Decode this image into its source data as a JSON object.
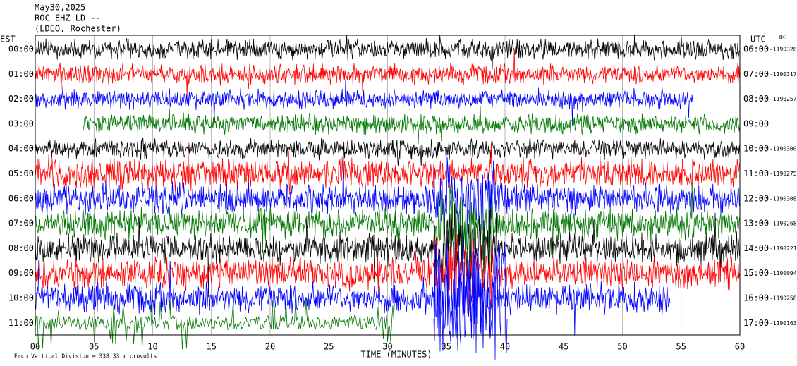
{
  "header": {
    "date": "May30,2025",
    "station": "ROC EHZ LD --",
    "location": "(LDEO, Rochester)",
    "left_zone": "EST",
    "right_zone": "UTC",
    "dc_label": "DC"
  },
  "rows": [
    {
      "est": "00:00",
      "utc": "06:00",
      "dc": "-1190328"
    },
    {
      "est": "01:00",
      "utc": "07:00",
      "dc": "-1190317"
    },
    {
      "est": "02:00",
      "utc": "08:00",
      "dc": "-1190257"
    },
    {
      "est": "03:00",
      "utc": "09:00"
    },
    {
      "est": "04:00",
      "utc": "10:00",
      "dc": "-1190300"
    },
    {
      "est": "05:00",
      "utc": "11:00",
      "dc": "-1190275"
    },
    {
      "est": "06:00",
      "utc": "12:00",
      "dc": "-1190308"
    },
    {
      "est": "07:00",
      "utc": "13:00",
      "dc": "-1190268"
    },
    {
      "est": "08:00",
      "utc": "14:00",
      "dc": "-1190221"
    },
    {
      "est": "09:00",
      "utc": "15:00",
      "dc": "-1190094"
    },
    {
      "est": "10:00",
      "utc": "16:00",
      "dc": "-1190258"
    },
    {
      "est": "11:00",
      "utc": "17:00",
      "dc": "-1190163"
    }
  ],
  "x_labels": [
    "00",
    "05",
    "10",
    "15",
    "20",
    "25",
    "30",
    "35",
    "40",
    "45",
    "50",
    "55",
    "60"
  ],
  "x_title": "TIME (MINUTES)",
  "footer": "Each Vertical Division = 338.33 microvolts"
}
